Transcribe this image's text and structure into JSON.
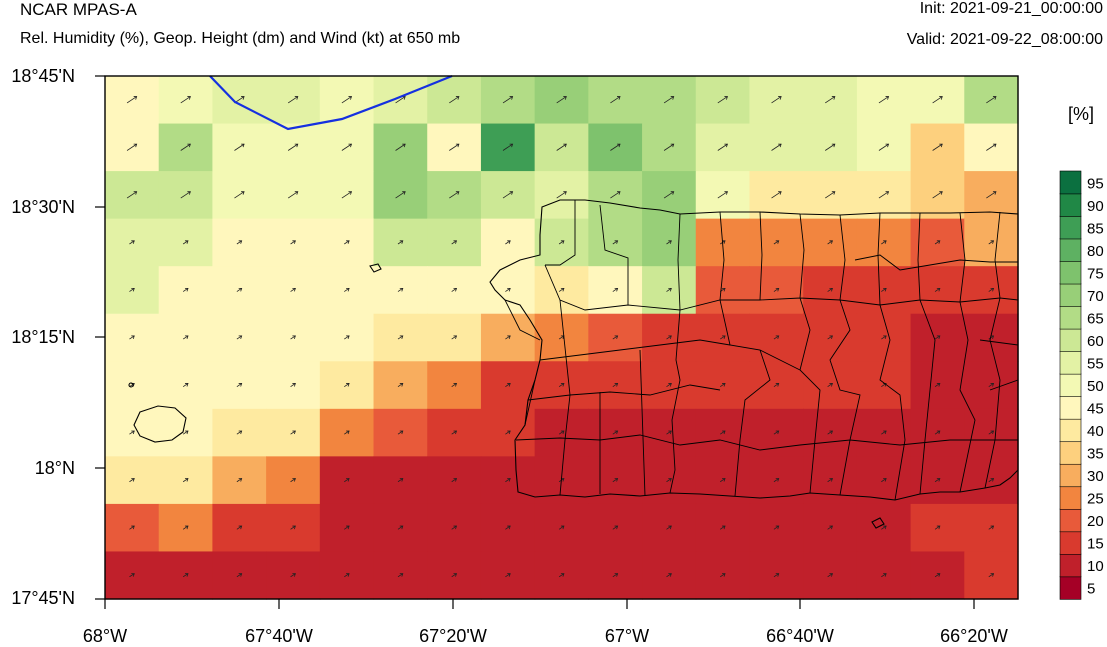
{
  "header": {
    "title": "NCAR MPAS-A",
    "subtitle": "Rel. Humidity (%), Geop. Height (dm) and Wind (kt) at 650 mb",
    "init": "Init: 2021-09-21_00:00:00",
    "valid": "Valid: 2021-09-22_08:00:00"
  },
  "colorbar": {
    "unit": "[%]",
    "levels": [
      "5",
      "10",
      "15",
      "20",
      "25",
      "30",
      "35",
      "40",
      "45",
      "50",
      "55",
      "60",
      "65",
      "70",
      "75",
      "80",
      "85",
      "90",
      "95"
    ],
    "colors": [
      "#a50026",
      "#c0202b",
      "#d93a2e",
      "#e85a3a",
      "#f2853f",
      "#f8ad5e",
      "#fdd07e",
      "#feeaa0",
      "#fff7bd",
      "#f3f9b4",
      "#e3f2a5",
      "#cce895",
      "#b2dc86",
      "#98cf78",
      "#7ec26d",
      "#5eb162",
      "#3e9e55",
      "#208846",
      "#0b7040"
    ]
  },
  "axes": {
    "lat_labels": [
      "18°45'N",
      "18°30'N",
      "18°15'N",
      "18°N",
      "17°45'N"
    ],
    "lon_labels": [
      "68°W",
      "67°40'W",
      "67°20'W",
      "67°W",
      "66°40'W",
      "66°20'W"
    ]
  },
  "field": {
    "rows": [
      [
        8,
        9,
        10,
        10,
        9,
        10,
        11,
        12,
        13,
        12,
        12,
        11,
        10,
        10,
        9,
        9,
        12
      ],
      [
        8,
        12,
        9,
        9,
        9,
        13,
        8,
        16,
        11,
        14,
        12,
        10,
        10,
        10,
        9,
        6,
        8
      ],
      [
        11,
        11,
        9,
        9,
        9,
        13,
        12,
        11,
        10,
        12,
        13,
        9,
        7,
        7,
        7,
        6,
        5
      ],
      [
        10,
        10,
        8,
        8,
        8,
        11,
        11,
        8,
        11,
        12,
        13,
        4,
        4,
        4,
        4,
        3,
        5
      ],
      [
        10,
        8,
        8,
        8,
        8,
        8,
        8,
        8,
        7,
        8,
        11,
        3,
        3,
        2,
        2,
        2,
        2
      ],
      [
        8,
        8,
        8,
        8,
        8,
        7,
        7,
        5,
        4,
        3,
        2,
        2,
        2,
        2,
        2,
        1,
        1
      ],
      [
        8,
        8,
        8,
        8,
        7,
        5,
        4,
        2,
        2,
        2,
        2,
        2,
        2,
        2,
        2,
        1,
        1
      ],
      [
        8,
        8,
        7,
        7,
        4,
        3,
        2,
        2,
        1,
        1,
        1,
        1,
        1,
        1,
        1,
        1,
        1
      ],
      [
        7,
        7,
        5,
        4,
        1,
        1,
        1,
        1,
        1,
        1,
        1,
        1,
        1,
        1,
        1,
        1,
        1
      ],
      [
        3,
        4,
        2,
        2,
        1,
        1,
        1,
        1,
        1,
        1,
        1,
        1,
        1,
        1,
        1,
        2,
        2
      ],
      [
        1,
        1,
        1,
        1,
        1,
        1,
        1,
        1,
        1,
        1,
        1,
        1,
        1,
        1,
        1,
        1,
        2
      ]
    ]
  }
}
